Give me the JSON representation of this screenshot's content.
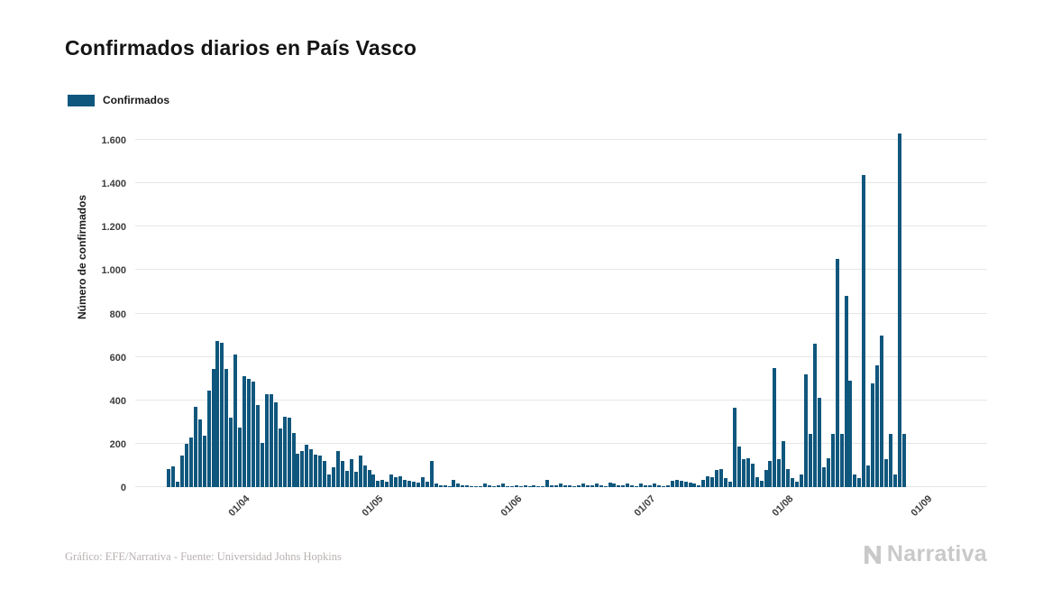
{
  "page": {
    "title": "Confirmados diarios en País Vasco",
    "footer_credit": "Gráfico: EFE/Narrativa - Fuente: Universidad Johns Hopkins",
    "brand": "Narrativa"
  },
  "legend": {
    "label": "Confirmados",
    "color": "#10577d"
  },
  "chart_data": {
    "type": "bar",
    "title": "Confirmados diarios en País Vasco",
    "xlabel": "",
    "ylabel": "Número de confirmados",
    "ylim": [
      0,
      1600
    ],
    "grid": true,
    "legend_position": "top-left",
    "bar_color": "#10577d",
    "ytick_values": [
      0,
      200,
      400,
      600,
      800,
      1000,
      1200,
      1400,
      1600
    ],
    "ytick_labels": [
      "0",
      "200",
      "400",
      "600",
      "800",
      "1.000",
      "1.200",
      "1.400",
      "1.600"
    ],
    "xticks": [
      {
        "label": "01/04",
        "index": 24
      },
      {
        "label": "01/05",
        "index": 54
      },
      {
        "label": "01/06",
        "index": 85
      },
      {
        "label": "01/07",
        "index": 115
      },
      {
        "label": "01/08",
        "index": 146
      },
      {
        "label": "01/09",
        "index": 177
      }
    ],
    "series": [
      {
        "name": "Confirmados",
        "values": [
          0,
          0,
          0,
          0,
          0,
          0,
          0,
          85,
          95,
          25,
          145,
          200,
          230,
          370,
          310,
          235,
          445,
          545,
          675,
          665,
          545,
          320,
          610,
          275,
          510,
          500,
          485,
          380,
          205,
          430,
          430,
          390,
          270,
          325,
          320,
          250,
          155,
          165,
          195,
          175,
          150,
          145,
          120,
          60,
          90,
          165,
          120,
          75,
          130,
          70,
          145,
          100,
          80,
          60,
          30,
          35,
          25,
          60,
          45,
          50,
          35,
          30,
          25,
          20,
          45,
          25,
          120,
          15,
          10,
          10,
          5,
          35,
          15,
          10,
          10,
          5,
          5,
          5,
          15,
          10,
          5,
          10,
          15,
          5,
          5,
          10,
          5,
          10,
          5,
          10,
          5,
          5,
          35,
          10,
          10,
          15,
          10,
          10,
          5,
          10,
          15,
          10,
          10,
          15,
          10,
          5,
          20,
          15,
          10,
          10,
          15,
          10,
          5,
          15,
          10,
          10,
          15,
          10,
          5,
          10,
          30,
          35,
          30,
          25,
          20,
          15,
          10,
          35,
          50,
          45,
          80,
          85,
          40,
          25,
          365,
          185,
          130,
          135,
          110,
          45,
          30,
          80,
          120,
          550,
          130,
          210,
          85,
          40,
          25,
          60,
          520,
          245,
          660,
          410,
          90,
          135,
          245,
          1050,
          245,
          880,
          490,
          60,
          40,
          1440,
          100,
          480,
          560,
          700,
          130,
          245,
          60,
          1630,
          245,
          0,
          0,
          0,
          0,
          0
        ]
      }
    ]
  }
}
